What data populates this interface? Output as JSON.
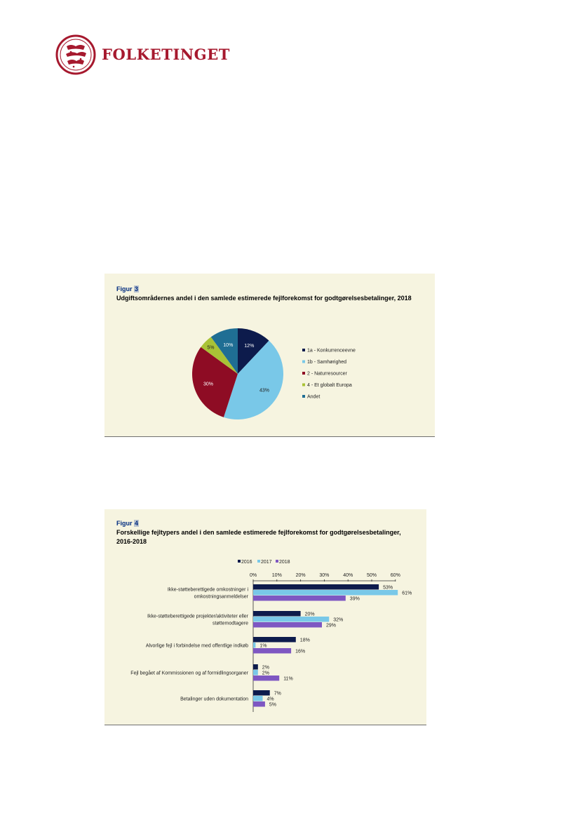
{
  "header": {
    "logo_text": "FOLKETINGET",
    "brand_color": "#a6192e"
  },
  "figure3": {
    "label_prefix": "Figur",
    "label_number": "3",
    "title": "Udgiftsområdernes andel i den samlede estimerede fejlforekomst for godtgørelsesbetalinger, 2018"
  },
  "figure4": {
    "label_prefix": "Figur",
    "label_number": "4",
    "title_line1": "Forskellige fejltypers andel i den samlede estimerede fejlforekomst for godtgørelsesbetalinger,",
    "title_line2": "2016-2018"
  },
  "chart_data": [
    {
      "type": "pie",
      "labels": [
        "1a - Konkurrenceevne",
        "1b - Samhørighed",
        "2 - Naturresourcer",
        "4 - Et globalt Europa",
        "Andet"
      ],
      "values": [
        12,
        43,
        30,
        5,
        10
      ],
      "value_labels": [
        "12%",
        "43%",
        "30%",
        "5%",
        "10%"
      ],
      "colors": [
        "#0d1b4c",
        "#79c8e8",
        "#8e0c24",
        "#a9c236",
        "#1f6e94"
      ],
      "legend_position": "right"
    },
    {
      "type": "bar",
      "orientation": "horizontal",
      "categories": [
        [
          "Ikke-støtteberettigede omkostninger i",
          "omkostningsanmeldelser"
        ],
        [
          "Ikke-støtteberettigede projekter/aktiviteter eller",
          "støttemodtagere"
        ],
        [
          "Alvorlige fejl i forbindelse med offentlige indkøb"
        ],
        [
          "Fejl begået af Kommissionen og af formidlingsorganer"
        ],
        [
          "Betalinger uden dokumentation"
        ]
      ],
      "series": [
        {
          "name": "2016",
          "values": [
            53,
            20,
            18,
            2,
            7
          ],
          "color": "#0d1b4c"
        },
        {
          "name": "2017",
          "values": [
            61,
            32,
            1,
            2,
            4
          ],
          "color": "#79c8e8"
        },
        {
          "name": "2018",
          "values": [
            39,
            29,
            16,
            11,
            5
          ],
          "color": "#7e57c2"
        }
      ],
      "xlim": [
        0,
        60
      ],
      "x_ticks": [
        "0%",
        "10%",
        "20%",
        "30%",
        "40%",
        "50%",
        "60%"
      ],
      "value_suffix": "%",
      "legend_position": "top"
    }
  ]
}
